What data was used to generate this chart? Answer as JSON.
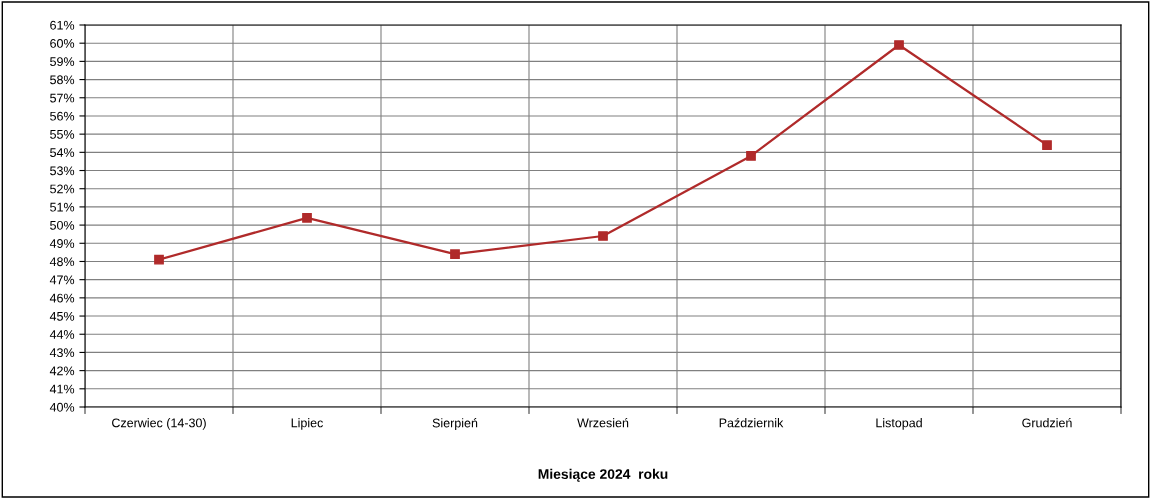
{
  "chart_data": {
    "type": "line",
    "xlabel": "Miesiące 2024  roku",
    "categories": [
      "Czerwiec (14-30)",
      "Lipiec",
      "Sierpień",
      "Wrzesień",
      "Październik",
      "Listopad",
      "Grudzień"
    ],
    "series": [
      {
        "color": "#b02a2a",
        "values": [
          48.1,
          50.4,
          48.4,
          49.4,
          53.8,
          59.9,
          54.4
        ]
      }
    ],
    "ylim": [
      40,
      61
    ],
    "yticks": [
      {
        "value": 40,
        "label": "40%"
      },
      {
        "value": 41,
        "label": "41%"
      },
      {
        "value": 42,
        "label": "42%"
      },
      {
        "value": 43,
        "label": "43%"
      },
      {
        "value": 44,
        "label": "44%"
      },
      {
        "value": 45,
        "label": "45%"
      },
      {
        "value": 46,
        "label": "46%"
      },
      {
        "value": 47,
        "label": "47%"
      },
      {
        "value": 48,
        "label": "48%"
      },
      {
        "value": 49,
        "label": "49%"
      },
      {
        "value": 50,
        "label": "50%"
      },
      {
        "value": 51,
        "label": "51%"
      },
      {
        "value": 52,
        "label": "52%"
      },
      {
        "value": 53,
        "label": "53%"
      },
      {
        "value": 54,
        "label": "54%"
      },
      {
        "value": 55,
        "label": "55%"
      },
      {
        "value": 56,
        "label": "56%"
      },
      {
        "value": 57,
        "label": "57%"
      },
      {
        "value": 58,
        "label": "58%"
      },
      {
        "value": 59,
        "label": "59%"
      },
      {
        "value": 60,
        "label": "60%"
      },
      {
        "value": 61,
        "label": "61%"
      }
    ],
    "grid": true,
    "marker": "square",
    "line_style": "solid",
    "legend": false
  }
}
